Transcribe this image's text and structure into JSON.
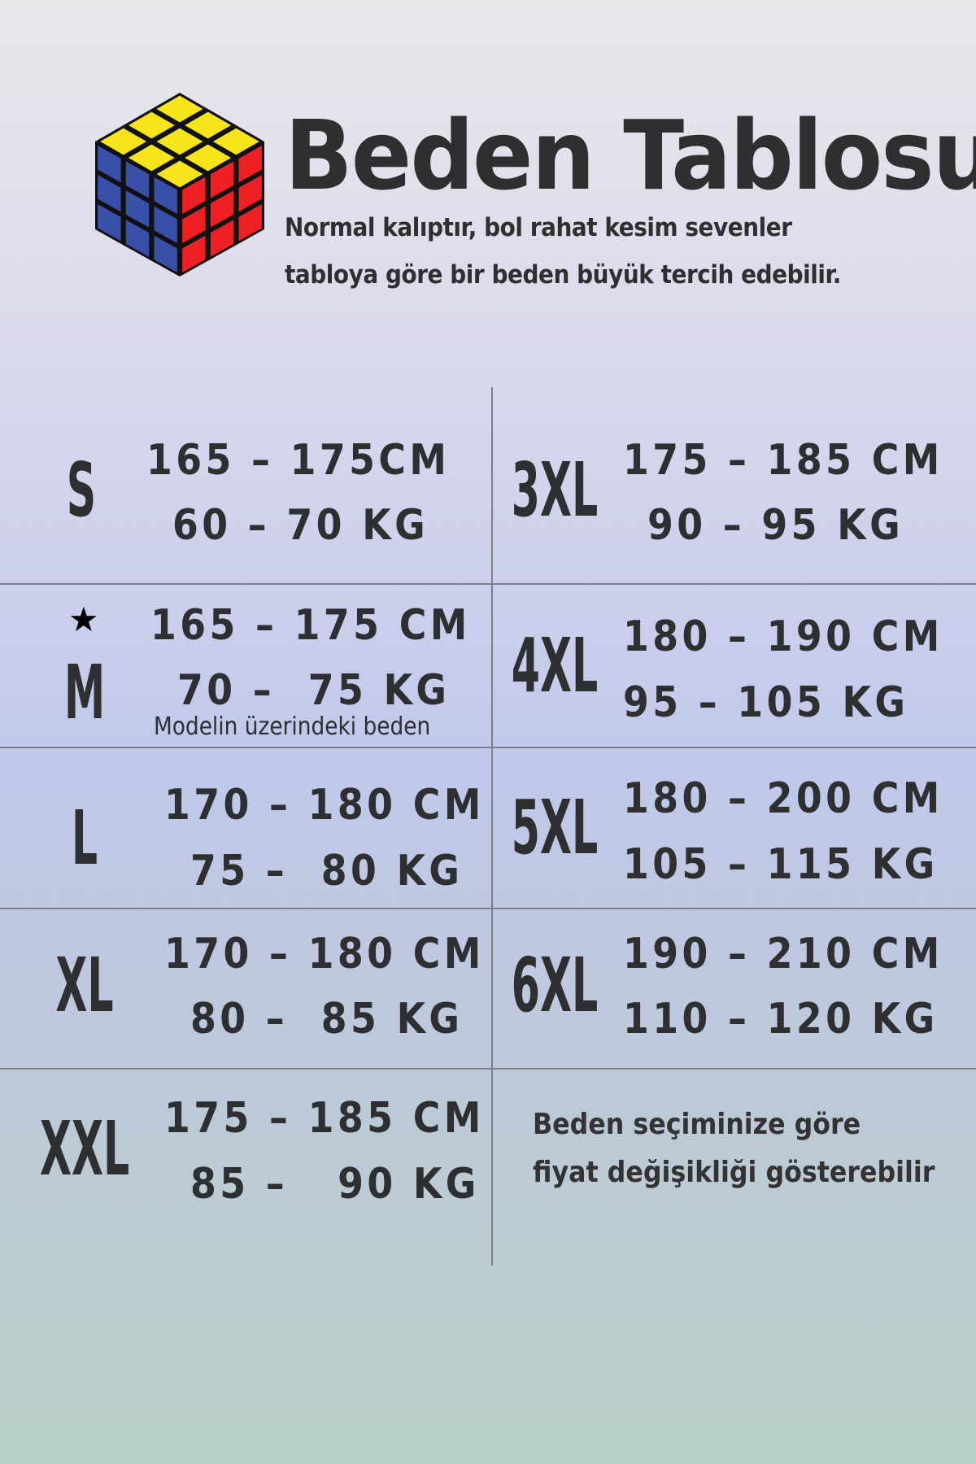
{
  "header": {
    "title": "Beden Tablosu",
    "subtitle_line1": "Normal kalıptır, bol rahat kesim sevenler",
    "subtitle_line2": "tabloya göre bir beden büyük tercih edebilir.",
    "logo_icon": "rubiks-cube-icon"
  },
  "colors": {
    "text": "#2d2f30",
    "cube_yellow": "#f7e51b",
    "cube_blue": "#3a4fa8",
    "cube_red": "#ee2024"
  },
  "left_sizes": [
    {
      "size": "S",
      "height": "165 – 175CM",
      "weight": "60 – 70 KG"
    },
    {
      "size": "M",
      "height": "165 – 175 CM",
      "weight": "70 –  75 KG",
      "marker": "★",
      "note": "Modelin üzerindeki beden"
    },
    {
      "size": "L",
      "height": "170 – 180 CM",
      "weight": "75 –  80 KG"
    },
    {
      "size": "XL",
      "height": "170 – 180 CM",
      "weight": "80 –  85 KG"
    },
    {
      "size": "XXL",
      "height": "175 – 185 CM",
      "weight": "85 –   90 KG"
    }
  ],
  "right_sizes": [
    {
      "size": "3XL",
      "height": "175 – 185 CM",
      "weight": "90 – 95 KG"
    },
    {
      "size": "4XL",
      "height": "180 – 190 CM",
      "weight": "95 – 105 KG"
    },
    {
      "size": "5XL",
      "height": "180 – 200 CM",
      "weight": "105 – 115 KG"
    },
    {
      "size": "6XL",
      "height": "190 – 210 CM",
      "weight": "110 – 120 KG"
    }
  ],
  "price_note_line1": "Beden seçiminize göre",
  "price_note_line2": "fiyat değişikliği gösterebilir"
}
